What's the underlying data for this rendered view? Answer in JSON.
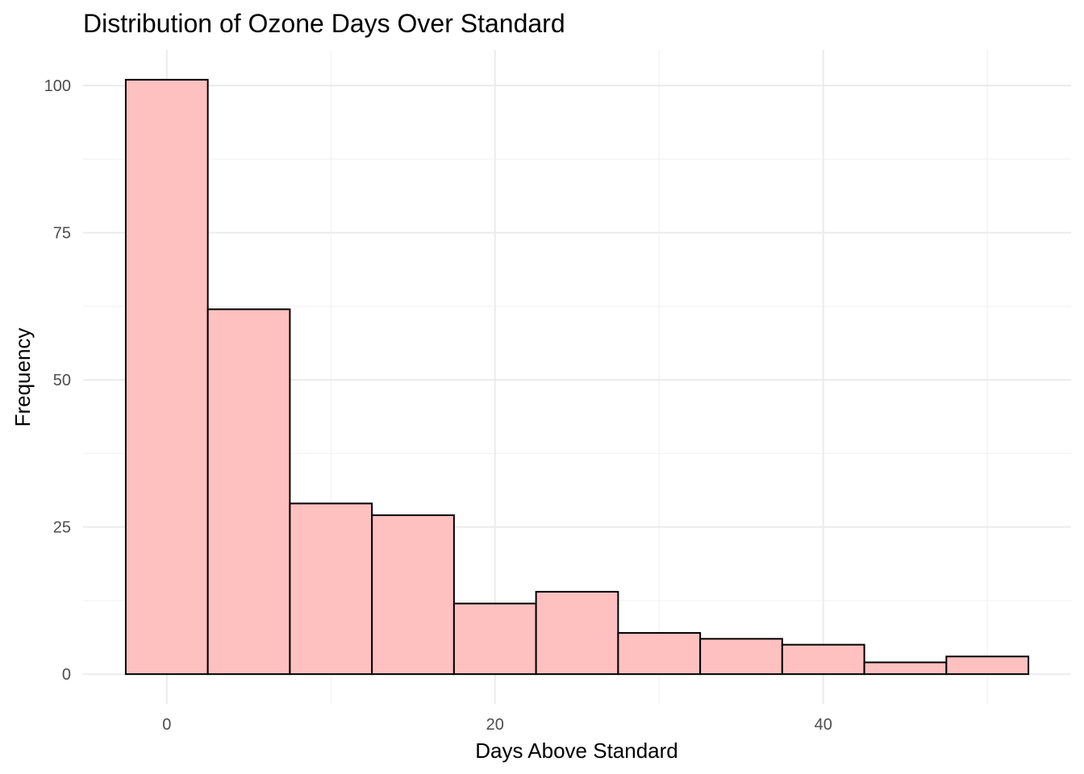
{
  "chart_data": {
    "type": "bar",
    "subtype": "histogram",
    "title": "Distribution of Ozone Days Over Standard",
    "xlabel": "Days Above Standard",
    "ylabel": "Frequency",
    "bin_width": 5,
    "bins": [
      {
        "x_min": -2.5,
        "x_max": 2.5,
        "count": 101
      },
      {
        "x_min": 2.5,
        "x_max": 7.5,
        "count": 62
      },
      {
        "x_min": 7.5,
        "x_max": 12.5,
        "count": 29
      },
      {
        "x_min": 12.5,
        "x_max": 17.5,
        "count": 27
      },
      {
        "x_min": 17.5,
        "x_max": 22.5,
        "count": 12
      },
      {
        "x_min": 22.5,
        "x_max": 27.5,
        "count": 14
      },
      {
        "x_min": 27.5,
        "x_max": 32.5,
        "count": 7
      },
      {
        "x_min": 32.5,
        "x_max": 37.5,
        "count": 6
      },
      {
        "x_min": 37.5,
        "x_max": 42.5,
        "count": 5
      },
      {
        "x_min": 42.5,
        "x_max": 47.5,
        "count": 2
      },
      {
        "x_min": 47.5,
        "x_max": 52.5,
        "count": 3
      }
    ],
    "xlim": [
      -5.1,
      55.1
    ],
    "ylim": [
      -5.05,
      106.05
    ],
    "x_ticks": [
      0,
      20,
      40
    ],
    "x_tick_labels": [
      "0",
      "20",
      "40"
    ],
    "x_minor_ticks": [
      10,
      30,
      50
    ],
    "y_ticks": [
      0,
      25,
      50,
      75,
      100
    ],
    "y_tick_labels": [
      "0",
      "25",
      "50",
      "75",
      "100"
    ],
    "y_minor_ticks": [
      12.5,
      37.5,
      62.5,
      87.5
    ],
    "grid": true,
    "legend": "none",
    "bar_fill": "#ffc0c0",
    "bar_outline": "#000000",
    "background": "#ffffff"
  }
}
